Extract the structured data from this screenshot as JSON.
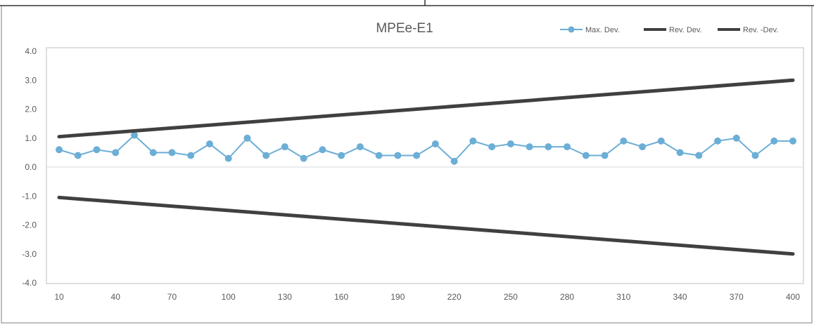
{
  "chart_data": {
    "type": "line",
    "title": "MPEe-E1",
    "xlabel": "",
    "ylabel": "",
    "x_tick_labels": [
      "10",
      "40",
      "70",
      "100",
      "130",
      "160",
      "190",
      "220",
      "250",
      "280",
      "310",
      "340",
      "370",
      "400"
    ],
    "y_tick_labels": [
      "4.0",
      "3.0",
      "2.0",
      "1.0",
      "0.0",
      "-1.0",
      "-2.0",
      "-3.0",
      "-4.0"
    ],
    "xlim": [
      10,
      400
    ],
    "ylim": [
      -4.0,
      4.0
    ],
    "grid": false,
    "legend_position": "top-right",
    "x": [
      10,
      20,
      30,
      40,
      50,
      60,
      70,
      80,
      90,
      100,
      110,
      120,
      130,
      140,
      150,
      160,
      170,
      180,
      190,
      200,
      210,
      220,
      230,
      240,
      250,
      260,
      270,
      280,
      290,
      300,
      310,
      320,
      330,
      340,
      350,
      360,
      370,
      380,
      390,
      400
    ],
    "series": [
      {
        "name": "Max. Dev.",
        "color": "#6baed6",
        "marker": "circle",
        "values": [
          0.6,
          0.4,
          0.6,
          0.5,
          1.1,
          0.5,
          0.5,
          0.4,
          0.8,
          0.3,
          1.0,
          0.4,
          0.7,
          0.3,
          0.6,
          0.4,
          0.7,
          0.4,
          0.4,
          0.4,
          0.8,
          0.2,
          0.9,
          0.7,
          0.8,
          0.7,
          0.7,
          0.7,
          0.4,
          0.4,
          0.9,
          0.7,
          0.9,
          0.5,
          0.4,
          0.9,
          1.0,
          0.4,
          0.9,
          0.9
        ]
      },
      {
        "name": "Rev. Dev.",
        "color": "#404040",
        "x": [
          10,
          400
        ],
        "values": [
          1.05,
          3.0
        ]
      },
      {
        "name": "Rev. -Dev.",
        "color": "#404040",
        "x": [
          10,
          400
        ],
        "values": [
          -1.05,
          -3.0
        ]
      }
    ]
  }
}
